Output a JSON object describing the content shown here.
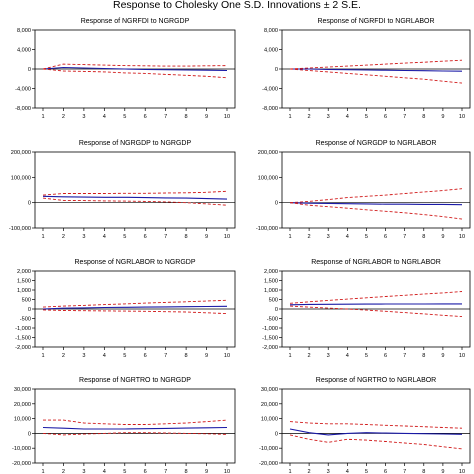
{
  "figure_title": "Response to Cholesky One S.D. Innovations ± 2 S.E.",
  "colors": {
    "response": "#1a1aa6",
    "band": "#d11a1a",
    "zero": "#000000",
    "frame": "#000000"
  },
  "chart_data": [
    {
      "type": "line",
      "title": "Response of NGRFDI to NGRGDP",
      "x": [
        1,
        2,
        3,
        4,
        5,
        6,
        7,
        8,
        9,
        10
      ],
      "ylim": [
        -8000,
        8000
      ],
      "yticks": [
        8000,
        4000,
        0,
        -4000,
        -8000
      ],
      "ytick_labels": [
        "8,000",
        "4,000",
        "0",
        "-4,000",
        "-8,000"
      ],
      "xtick_labels": [
        "1",
        "2",
        "3",
        "4",
        "5",
        "6",
        "7",
        "8",
        "9",
        "10"
      ],
      "grid": false,
      "series": [
        {
          "role": "response",
          "values": [
            0,
            300,
            200,
            100,
            0,
            -100,
            -150,
            -200,
            -250,
            -300
          ]
        },
        {
          "role": "upper",
          "values": [
            0,
            1000,
            900,
            800,
            700,
            650,
            600,
            600,
            650,
            700
          ]
        },
        {
          "role": "lower",
          "values": [
            0,
            -400,
            -500,
            -600,
            -800,
            -900,
            -1100,
            -1300,
            -1500,
            -1800
          ]
        }
      ]
    },
    {
      "type": "line",
      "title": "Response of NGRFDI to NGRLABOR",
      "x": [
        1,
        2,
        3,
        4,
        5,
        6,
        7,
        8,
        9,
        10
      ],
      "ylim": [
        -8000,
        8000
      ],
      "yticks": [
        8000,
        4000,
        0,
        -4000,
        -8000
      ],
      "ytick_labels": [
        "8,000",
        "4,000",
        "0",
        "-4,000",
        "-8,000"
      ],
      "xtick_labels": [
        "1",
        "2",
        "3",
        "4",
        "5",
        "6",
        "7",
        "8",
        "9",
        "10"
      ],
      "grid": false,
      "series": [
        {
          "role": "response",
          "values": [
            0,
            0,
            -100,
            -150,
            -200,
            -250,
            -300,
            -350,
            -400,
            -450
          ]
        },
        {
          "role": "upper",
          "values": [
            0,
            200,
            400,
            600,
            800,
            1000,
            1200,
            1400,
            1600,
            1800
          ]
        },
        {
          "role": "lower",
          "values": [
            0,
            -300,
            -600,
            -900,
            -1200,
            -1500,
            -1800,
            -2100,
            -2500,
            -2900
          ]
        }
      ]
    },
    {
      "type": "line",
      "title": "Response of NGRGDP to NGRGDP",
      "x": [
        1,
        2,
        3,
        4,
        5,
        6,
        7,
        8,
        9,
        10
      ],
      "ylim": [
        -100000,
        200000
      ],
      "yticks": [
        200000,
        100000,
        0,
        -100000
      ],
      "ytick_labels": [
        "200,000",
        "100,000",
        "0",
        "-100,000"
      ],
      "xtick_labels": [
        "1",
        "2",
        "3",
        "4",
        "5",
        "6",
        "7",
        "8",
        "9",
        "10"
      ],
      "grid": false,
      "series": [
        {
          "role": "response",
          "values": [
            25000,
            23000,
            22000,
            21000,
            21000,
            20000,
            19000,
            18000,
            16000,
            14000
          ]
        },
        {
          "role": "upper",
          "values": [
            30000,
            36000,
            36000,
            36000,
            37000,
            37000,
            38000,
            39000,
            41000,
            45000
          ]
        },
        {
          "role": "lower",
          "values": [
            18000,
            9000,
            8000,
            7000,
            6000,
            5000,
            3000,
            0,
            -5000,
            -10000
          ]
        }
      ]
    },
    {
      "type": "line",
      "title": "Response of NGRGDP to NGRLABOR",
      "x": [
        1,
        2,
        3,
        4,
        5,
        6,
        7,
        8,
        9,
        10
      ],
      "ylim": [
        -100000,
        200000
      ],
      "yticks": [
        200000,
        100000,
        0,
        -100000
      ],
      "ytick_labels": [
        "200,000",
        "100,000",
        "0",
        "-100,000"
      ],
      "xtick_labels": [
        "1",
        "2",
        "3",
        "4",
        "5",
        "6",
        "7",
        "8",
        "9",
        "10"
      ],
      "grid": false,
      "series": [
        {
          "role": "response",
          "values": [
            0,
            -2000,
            -3000,
            -4000,
            -5000,
            -6000,
            -6000,
            -7000,
            -7000,
            -8000
          ]
        },
        {
          "role": "upper",
          "values": [
            0,
            5000,
            12000,
            20000,
            25000,
            30000,
            36000,
            42000,
            48000,
            55000
          ]
        },
        {
          "role": "lower",
          "values": [
            0,
            -10000,
            -16000,
            -22000,
            -28000,
            -34000,
            -40000,
            -47000,
            -55000,
            -65000
          ]
        }
      ]
    },
    {
      "type": "line",
      "title": "Response of NGRLABOR to NGRGDP",
      "x": [
        1,
        2,
        3,
        4,
        5,
        6,
        7,
        8,
        9,
        10
      ],
      "ylim": [
        -2000,
        2000
      ],
      "yticks": [
        2000,
        1500,
        1000,
        500,
        0,
        -500,
        -1000,
        -1500,
        -2000
      ],
      "ytick_labels": [
        "2,000",
        "1,500",
        "1,000",
        "500",
        "0",
        "-500",
        "-1,000",
        "-1,500",
        "-2,000"
      ],
      "xtick_labels": [
        "1",
        "2",
        "3",
        "4",
        "5",
        "6",
        "7",
        "8",
        "9",
        "10"
      ],
      "grid": false,
      "series": [
        {
          "role": "response",
          "values": [
            0,
            40,
            60,
            80,
            90,
            100,
            110,
            120,
            130,
            140
          ]
        },
        {
          "role": "upper",
          "values": [
            100,
            150,
            190,
            230,
            270,
            310,
            350,
            380,
            420,
            460
          ]
        },
        {
          "role": "lower",
          "values": [
            -50,
            -80,
            -90,
            -100,
            -110,
            -120,
            -140,
            -160,
            -200,
            -240
          ]
        }
      ]
    },
    {
      "type": "line",
      "title": "Response of NGRLABOR to NGRLABOR",
      "x": [
        1,
        2,
        3,
        4,
        5,
        6,
        7,
        8,
        9,
        10
      ],
      "ylim": [
        -2000,
        2000
      ],
      "yticks": [
        2000,
        1500,
        1000,
        500,
        0,
        -500,
        -1000,
        -1500,
        -2000
      ],
      "ytick_labels": [
        "2,000",
        "1,500",
        "1,000",
        "500",
        "0",
        "-500",
        "-1,000",
        "-1,500",
        "-2,000"
      ],
      "xtick_labels": [
        "1",
        "2",
        "3",
        "4",
        "5",
        "6",
        "7",
        "8",
        "9",
        "10"
      ],
      "grid": false,
      "series": [
        {
          "role": "response",
          "values": [
            220,
            240,
            250,
            255,
            260,
            262,
            264,
            265,
            266,
            267
          ]
        },
        {
          "role": "upper",
          "values": [
            300,
            380,
            450,
            520,
            590,
            660,
            720,
            790,
            850,
            920
          ]
        },
        {
          "role": "lower",
          "values": [
            150,
            100,
            50,
            0,
            -60,
            -120,
            -190,
            -260,
            -330,
            -400
          ]
        }
      ]
    },
    {
      "type": "line",
      "title": "Response of NGRTRO to NGRGDP",
      "x": [
        1,
        2,
        3,
        4,
        5,
        6,
        7,
        8,
        9,
        10
      ],
      "ylim": [
        -20000,
        30000
      ],
      "yticks": [
        30000,
        20000,
        10000,
        0,
        -10000,
        -20000
      ],
      "ytick_labels": [
        "30,000",
        "20,000",
        "10,000",
        "0",
        "-10,000",
        "-20,000"
      ],
      "xtick_labels": [
        "1",
        "2",
        "3",
        "4",
        "5",
        "6",
        "7",
        "8",
        "9",
        "10"
      ],
      "grid": false,
      "series": [
        {
          "role": "response",
          "values": [
            4000,
            3500,
            3000,
            3000,
            3000,
            3200,
            3400,
            3600,
            3800,
            4000
          ]
        },
        {
          "role": "upper",
          "values": [
            9000,
            9000,
            7000,
            6500,
            6000,
            6000,
            6500,
            7000,
            8000,
            9000
          ]
        },
        {
          "role": "lower",
          "values": [
            0,
            -1000,
            -500,
            0,
            500,
            500,
            300,
            0,
            -300,
            -700
          ]
        }
      ]
    },
    {
      "type": "line",
      "title": "Response of NGRTRO to NGRLABOR",
      "x": [
        1,
        2,
        3,
        4,
        5,
        6,
        7,
        8,
        9,
        10
      ],
      "ylim": [
        -20000,
        30000
      ],
      "yticks": [
        30000,
        20000,
        10000,
        0,
        -10000,
        -20000
      ],
      "ytick_labels": [
        "30,000",
        "20,000",
        "10,000",
        "0",
        "-10,000",
        "-20,000"
      ],
      "xtick_labels": [
        "1",
        "2",
        "3",
        "4",
        "5",
        "6",
        "7",
        "8",
        "9",
        "10"
      ],
      "grid": false,
      "series": [
        {
          "role": "response",
          "values": [
            3000,
            500,
            -1000,
            0,
            500,
            200,
            0,
            -200,
            -400,
            -600
          ]
        },
        {
          "role": "upper",
          "values": [
            8000,
            7000,
            6500,
            6500,
            6000,
            5500,
            5000,
            4500,
            4000,
            3500
          ]
        },
        {
          "role": "lower",
          "values": [
            -1000,
            -4000,
            -6000,
            -4000,
            -4500,
            -5500,
            -6500,
            -7500,
            -9000,
            -10500
          ]
        }
      ]
    }
  ]
}
